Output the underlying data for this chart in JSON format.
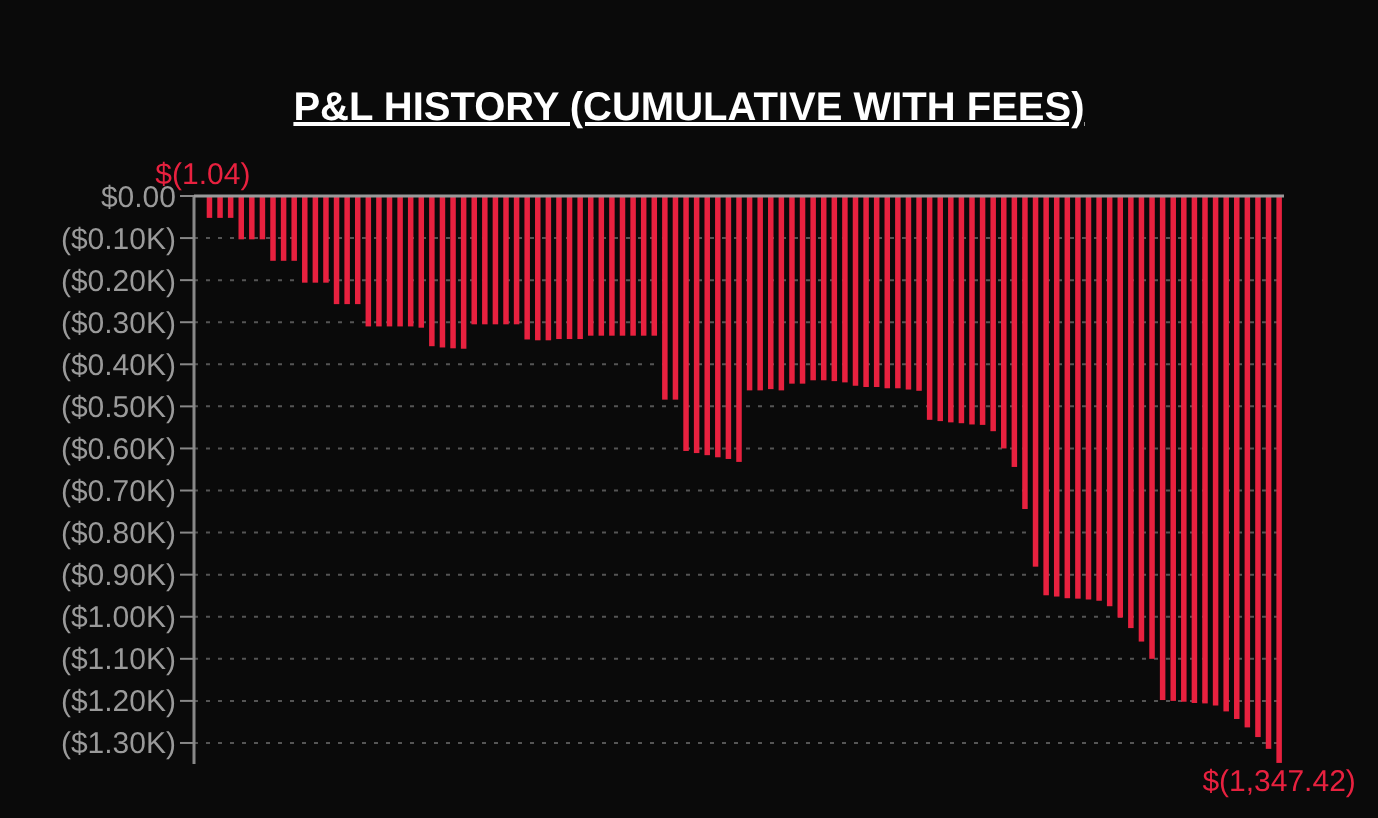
{
  "chart_data": {
    "type": "bar",
    "title": "P&L HISTORY (CUMULATIVE WITH FEES)",
    "color": "#e8213f",
    "grid": "y",
    "categories": [
      null,
      null,
      null,
      null,
      null,
      null,
      null,
      null,
      null,
      null,
      null,
      null,
      null,
      null,
      null,
      null,
      null,
      null,
      null,
      null,
      null,
      null,
      null,
      null,
      null,
      null,
      null,
      null,
      null,
      null,
      null,
      null,
      null,
      null,
      null,
      null,
      null,
      null,
      null,
      null,
      null,
      null,
      null,
      null,
      null,
      null,
      null,
      null,
      null,
      null,
      null,
      null,
      null,
      null,
      null,
      null,
      null,
      null,
      null,
      null,
      null,
      null,
      null,
      null,
      null,
      null,
      null,
      null,
      null,
      null,
      null,
      null,
      null,
      null,
      null,
      null,
      null,
      null,
      null,
      null,
      null,
      null,
      null,
      null,
      null,
      null,
      null,
      null,
      null,
      null,
      null,
      null,
      null,
      null,
      null,
      null,
      null,
      null,
      null,
      null,
      null,
      null,
      null
    ],
    "values": [
      -1.04,
      -52,
      -52,
      -52,
      -103,
      -103,
      -103,
      -154,
      -154,
      -154,
      -206,
      -206,
      -206,
      -257,
      -257,
      -257,
      -310,
      -310,
      -310,
      -310,
      -310,
      -313,
      -357,
      -360,
      -362,
      -363,
      -305,
      -305,
      -305,
      -305,
      -305,
      -341,
      -343,
      -343,
      -340,
      -340,
      -340,
      -332,
      -332,
      -332,
      -332,
      -332,
      -332,
      -332,
      -484,
      -484,
      -606,
      -611,
      -616,
      -621,
      -625,
      -632,
      -462,
      -462,
      -459,
      -462,
      -446,
      -446,
      -438,
      -438,
      -440,
      -443,
      -451,
      -454,
      -454,
      -457,
      -457,
      -460,
      -463,
      -532,
      -535,
      -538,
      -540,
      -543,
      -544,
      -559,
      -600,
      -644,
      -744,
      -881,
      -949,
      -952,
      -956,
      -957,
      -959,
      -962,
      -975,
      -1002,
      -1027,
      -1059,
      -1100,
      -1198,
      -1200,
      -1202,
      -1205,
      -1206,
      -1211,
      -1225,
      -1243,
      -1263,
      -1286,
      -1314,
      -1347.42
    ],
    "value_labels": [
      "$(1.04)",
      null,
      null,
      null,
      null,
      null,
      null,
      null,
      null,
      null,
      null,
      null,
      null,
      null,
      null,
      null,
      null,
      null,
      null,
      null,
      null,
      null,
      null,
      null,
      null,
      null,
      null,
      null,
      null,
      null,
      null,
      null,
      null,
      null,
      null,
      null,
      null,
      null,
      null,
      null,
      null,
      null,
      null,
      null,
      null,
      null,
      null,
      null,
      null,
      null,
      null,
      null,
      null,
      null,
      null,
      null,
      null,
      null,
      null,
      null,
      null,
      null,
      null,
      null,
      null,
      null,
      null,
      null,
      null,
      null,
      null,
      null,
      null,
      null,
      null,
      null,
      null,
      null,
      null,
      null,
      null,
      null,
      null,
      null,
      null,
      null,
      null,
      null,
      null,
      null,
      null,
      null,
      null,
      null,
      null,
      null,
      null,
      null,
      null,
      null,
      null,
      null,
      "$(1,347.42)"
    ],
    "ylim": [
      -1350,
      0
    ],
    "yticks": [
      {
        "value": 0,
        "label": "$0.00"
      },
      {
        "value": -100,
        "label": "($0.10K)"
      },
      {
        "value": -200,
        "label": "($0.20K)"
      },
      {
        "value": -300,
        "label": "($0.30K)"
      },
      {
        "value": -400,
        "label": "($0.40K)"
      },
      {
        "value": -500,
        "label": "($0.50K)"
      },
      {
        "value": -600,
        "label": "($0.60K)"
      },
      {
        "value": -700,
        "label": "($0.70K)"
      },
      {
        "value": -800,
        "label": "($0.80K)"
      },
      {
        "value": -900,
        "label": "($0.90K)"
      },
      {
        "value": -1000,
        "label": "($1.00K)"
      },
      {
        "value": -1100,
        "label": "($1.10K)"
      },
      {
        "value": -1200,
        "label": "($1.20K)"
      },
      {
        "value": -1300,
        "label": "($1.30K)"
      }
    ]
  }
}
